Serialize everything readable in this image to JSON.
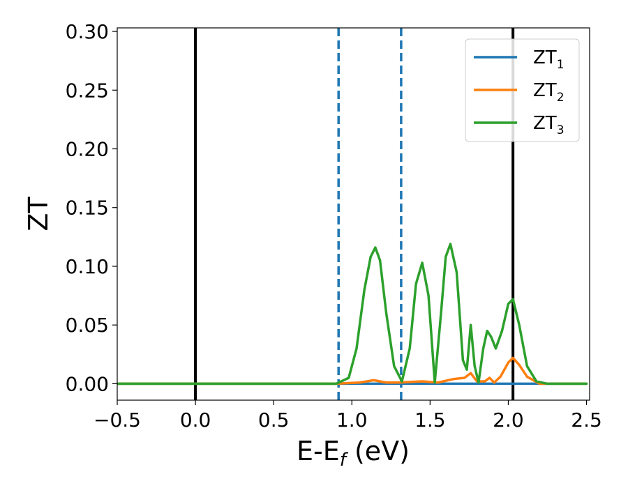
{
  "chart_data": {
    "type": "line",
    "title": "",
    "xlabel": "E-E",
    "xlabel_sub": "f",
    "xlabel_unit": " (eV)",
    "ylabel": "ZT",
    "xlim": [
      -0.5,
      2.52
    ],
    "ylim": [
      -0.014,
      0.303
    ],
    "xticks": [
      -0.5,
      0.0,
      0.5,
      1.0,
      1.5,
      2.0,
      2.5
    ],
    "xtick_labels": [
      "−0.5",
      "0.0",
      "0.5",
      "1.0",
      "1.5",
      "2.0",
      "2.5"
    ],
    "yticks": [
      0.0,
      0.05,
      0.1,
      0.15,
      0.2,
      0.25,
      0.3
    ],
    "ytick_labels": [
      "0.00",
      "0.05",
      "0.10",
      "0.15",
      "0.20",
      "0.25",
      "0.30"
    ],
    "grid": false,
    "legend_position": "top-right",
    "vertical_lines": [
      {
        "x": 0.0,
        "style": "solid",
        "color": "#000000"
      },
      {
        "x": 2.03,
        "style": "solid",
        "color": "#000000"
      },
      {
        "x": 0.915,
        "style": "dashed",
        "color": "#1f77b4"
      },
      {
        "x": 1.315,
        "style": "dashed",
        "color": "#1f77b4"
      }
    ],
    "series": [
      {
        "name": "ZT",
        "sub": "1",
        "color": "#1f77b4",
        "x": [
          -0.5,
          2.5
        ],
        "y": [
          0.0,
          0.0
        ]
      },
      {
        "name": "ZT",
        "sub": "2",
        "color": "#ff7f0e",
        "x": [
          -0.5,
          0.9,
          1.05,
          1.14,
          1.22,
          1.3,
          1.45,
          1.55,
          1.65,
          1.72,
          1.76,
          1.8,
          1.85,
          1.88,
          1.91,
          1.95,
          2.0,
          2.03,
          2.07,
          2.12,
          2.2,
          2.5
        ],
        "y": [
          0.0,
          0.0,
          0.001,
          0.003,
          0.001,
          0.001,
          0.002,
          0.001,
          0.004,
          0.005,
          0.009,
          0.002,
          0.002,
          0.005,
          0.001,
          0.006,
          0.018,
          0.022,
          0.016,
          0.006,
          0.0,
          0.0
        ]
      },
      {
        "name": "ZT",
        "sub": "3",
        "color": "#2ca02c",
        "x": [
          -0.5,
          0.9,
          0.98,
          1.03,
          1.08,
          1.12,
          1.15,
          1.18,
          1.22,
          1.27,
          1.32,
          1.37,
          1.41,
          1.45,
          1.49,
          1.53,
          1.57,
          1.6,
          1.63,
          1.67,
          1.71,
          1.735,
          1.76,
          1.785,
          1.81,
          1.84,
          1.865,
          1.89,
          1.92,
          1.96,
          2.0,
          2.03,
          2.07,
          2.12,
          2.18,
          2.25,
          2.5
        ],
        "y": [
          0.0,
          0.0,
          0.005,
          0.03,
          0.08,
          0.108,
          0.116,
          0.105,
          0.06,
          0.015,
          0.002,
          0.03,
          0.085,
          0.103,
          0.075,
          0.001,
          0.06,
          0.108,
          0.119,
          0.095,
          0.02,
          0.012,
          0.05,
          0.015,
          0.001,
          0.03,
          0.045,
          0.04,
          0.03,
          0.045,
          0.068,
          0.072,
          0.05,
          0.015,
          0.002,
          0.0,
          0.0
        ]
      }
    ]
  }
}
